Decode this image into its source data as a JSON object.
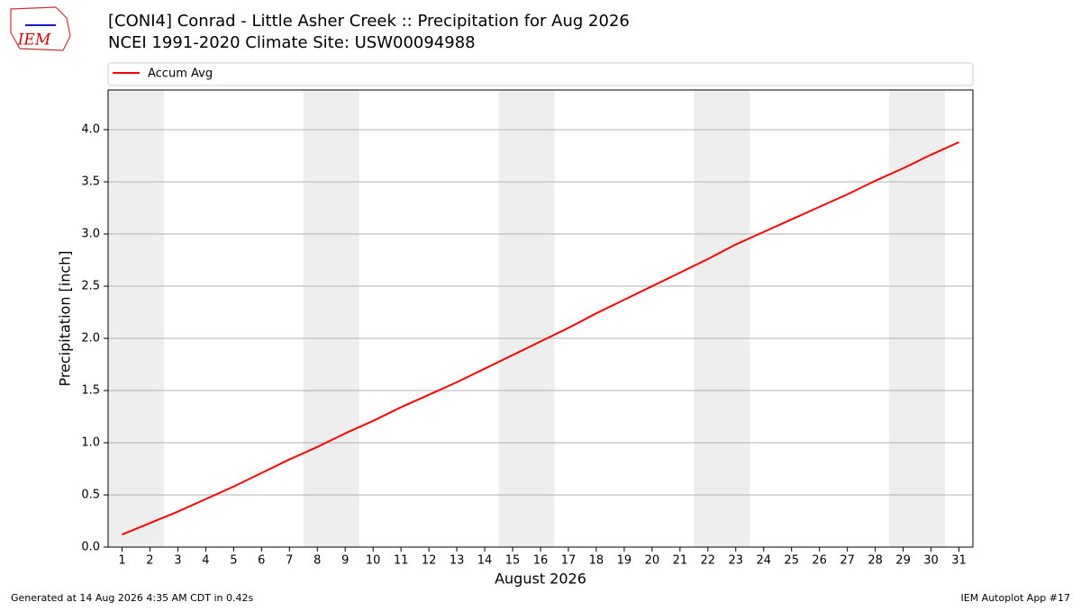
{
  "logo_text": "IEM",
  "footer_left": "Generated at 14 Aug 2026 4:35 AM CDT in 0.42s",
  "footer_right": "IEM Autoplot App #17",
  "chart_data": {
    "type": "line",
    "title": "[CONI4] Conrad - Little Asher Creek :: Precipitation for Aug 2026",
    "subtitle": "NCEI 1991-2020 Climate Site: USW00094988",
    "x_label": "August 2026",
    "y_label": "Precipitation [inch]",
    "x": [
      1,
      2,
      3,
      4,
      5,
      6,
      7,
      8,
      9,
      10,
      11,
      12,
      13,
      14,
      15,
      16,
      17,
      18,
      19,
      20,
      21,
      22,
      23,
      24,
      25,
      26,
      27,
      28,
      29,
      30,
      31
    ],
    "series": [
      {
        "name": "Accum Avg",
        "color": "#ff0000",
        "values": [
          0.12,
          0.23,
          0.34,
          0.46,
          0.58,
          0.71,
          0.84,
          0.96,
          1.09,
          1.21,
          1.34,
          1.46,
          1.58,
          1.71,
          1.84,
          1.97,
          2.1,
          2.24,
          2.37,
          2.5,
          2.63,
          2.76,
          2.9,
          3.02,
          3.14,
          3.26,
          3.38,
          3.51,
          3.63,
          3.76,
          3.88
        ]
      }
    ],
    "shaded_ranges": [
      [
        0.5,
        2.5
      ],
      [
        7.5,
        9.5
      ],
      [
        14.5,
        16.5
      ],
      [
        21.5,
        23.5
      ],
      [
        28.5,
        30.5
      ]
    ],
    "shade_color": "#eeeeee",
    "xlim": [
      0.5,
      31.5
    ],
    "xticks": [
      1,
      2,
      3,
      4,
      5,
      6,
      7,
      8,
      9,
      10,
      11,
      12,
      13,
      14,
      15,
      16,
      17,
      18,
      19,
      20,
      21,
      22,
      23,
      24,
      25,
      26,
      27,
      28,
      29,
      30,
      31
    ],
    "ylim": [
      0,
      4.38
    ],
    "yticks": [
      {
        "value": 0,
        "label": "0.0"
      },
      0.5,
      {
        "value": 1,
        "label": "1.0"
      },
      1.5,
      {
        "value": 2,
        "label": "2.0"
      },
      2.5,
      {
        "value": 3,
        "label": "3.0"
      },
      3.5,
      {
        "value": 4,
        "label": "4.0"
      }
    ],
    "grid": "y",
    "legend": "top"
  }
}
